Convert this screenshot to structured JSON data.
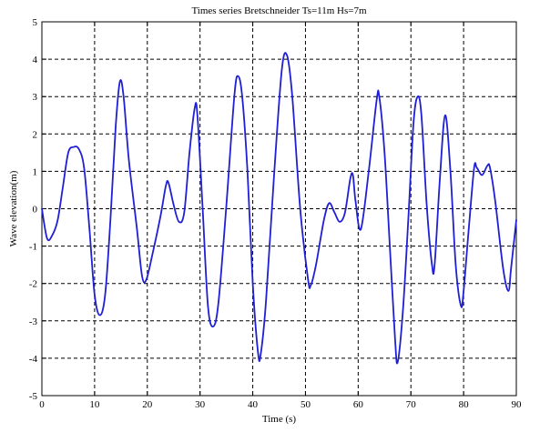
{
  "chart_data": {
    "type": "line",
    "title": "Times series Bretschneider Ts=11m Hs=7m",
    "xlabel": "Time (s)",
    "ylabel": "Wave elevation(m)",
    "xlim": [
      0,
      90
    ],
    "ylim": [
      -5,
      5
    ],
    "xticks": [
      "0",
      "10",
      "20",
      "30",
      "40",
      "50",
      "60",
      "70",
      "80",
      "90"
    ],
    "yticks": [
      "5",
      "4",
      "3",
      "2",
      "1",
      "0",
      "-1",
      "-2",
      "-3",
      "-4",
      "-5"
    ],
    "grid": true,
    "legend": "none",
    "colors": {
      "series": "#1f1fd6",
      "grid": "#000000",
      "axes": "#000000"
    },
    "series": [
      {
        "points": [
          [
            0,
            0
          ],
          [
            1,
            -0.8
          ],
          [
            2,
            -0.7
          ],
          [
            3,
            -0.3
          ],
          [
            4,
            0.6
          ],
          [
            5,
            1.5
          ],
          [
            6,
            1.65
          ],
          [
            7,
            1.6
          ],
          [
            8,
            1.1
          ],
          [
            9,
            -0.5
          ],
          [
            10,
            -2.3
          ],
          [
            11,
            -2.85
          ],
          [
            12,
            -2.3
          ],
          [
            13,
            -0.3
          ],
          [
            14,
            2.2
          ],
          [
            14.8,
            3.4
          ],
          [
            15.5,
            3.0
          ],
          [
            16.5,
            1.3
          ],
          [
            18,
            -0.5
          ],
          [
            19,
            -1.8
          ],
          [
            19.8,
            -1.9
          ],
          [
            21,
            -1.2
          ],
          [
            22.5,
            -0.2
          ],
          [
            23.5,
            0.6
          ],
          [
            24,
            0.7
          ],
          [
            25,
            0.1
          ],
          [
            26,
            -0.35
          ],
          [
            27,
            -0.1
          ],
          [
            28,
            1.5
          ],
          [
            29,
            2.7
          ],
          [
            29.5,
            2.5
          ],
          [
            30.5,
            0
          ],
          [
            31.5,
            -2.6
          ],
          [
            32.5,
            -3.15
          ],
          [
            33.5,
            -2.5
          ],
          [
            35,
            0.1
          ],
          [
            36.5,
            3.0
          ],
          [
            37.2,
            3.55
          ],
          [
            38,
            3.0
          ],
          [
            39,
            1.0
          ],
          [
            40,
            -2.0
          ],
          [
            41,
            -3.85
          ],
          [
            41.5,
            -3.9
          ],
          [
            42.5,
            -2.5
          ],
          [
            44,
            0.8
          ],
          [
            45.5,
            3.7
          ],
          [
            46.5,
            4.1
          ],
          [
            47.5,
            3.0
          ],
          [
            49,
            0
          ],
          [
            50.5,
            -1.9
          ],
          [
            51,
            -2.05
          ],
          [
            52,
            -1.5
          ],
          [
            53.5,
            -0.3
          ],
          [
            54.5,
            0.15
          ],
          [
            55.5,
            -0.1
          ],
          [
            56.5,
            -0.35
          ],
          [
            57.5,
            -0.1
          ],
          [
            58.5,
            0.8
          ],
          [
            59,
            0.9
          ],
          [
            59.5,
            0.2
          ],
          [
            60.5,
            -0.55
          ],
          [
            62,
            1.0
          ],
          [
            63.5,
            2.9
          ],
          [
            64,
            3.0
          ],
          [
            65,
            1.5
          ],
          [
            66,
            -1.0
          ],
          [
            67,
            -3.5
          ],
          [
            67.5,
            -4.1
          ],
          [
            68.5,
            -2.7
          ],
          [
            69.5,
            -0.3
          ],
          [
            70.5,
            2.3
          ],
          [
            71.3,
            3.0
          ],
          [
            72,
            2.5
          ],
          [
            73,
            0.1
          ],
          [
            74,
            -1.5
          ],
          [
            74.5,
            -1.5
          ],
          [
            75.5,
            0.8
          ],
          [
            76.5,
            2.5
          ],
          [
            77.5,
            1.0
          ],
          [
            78.5,
            -1.5
          ],
          [
            79.5,
            -2.6
          ],
          [
            80,
            -2.2
          ],
          [
            81,
            -0.5
          ],
          [
            82,
            1.1
          ],
          [
            82.5,
            1.1
          ],
          [
            83.5,
            0.9
          ],
          [
            84.5,
            1.15
          ],
          [
            85,
            1.1
          ],
          [
            86,
            0.2
          ],
          [
            87.5,
            -1.6
          ],
          [
            88.5,
            -2.2
          ],
          [
            89,
            -1.6
          ],
          [
            90,
            -0.3
          ]
        ]
      }
    ]
  }
}
